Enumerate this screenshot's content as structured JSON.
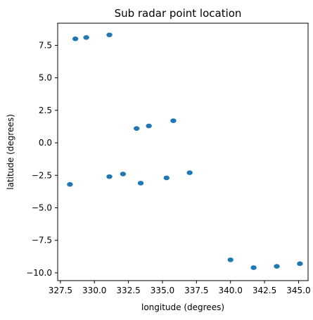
{
  "chart_data": {
    "type": "scatter",
    "title": "Sub radar point location",
    "xlabel": "longitude (degrees)",
    "ylabel": "latitude (degrees)",
    "xlim": [
      327.3,
      345.7
    ],
    "ylim": [
      -10.6,
      9.2
    ],
    "grid": false,
    "legend": "none",
    "marker_color": "#1f77b4",
    "xticks": [
      {
        "value": 327.5,
        "label": "327.5"
      },
      {
        "value": 330.0,
        "label": "330.0"
      },
      {
        "value": 332.5,
        "label": "332.5"
      },
      {
        "value": 335.0,
        "label": "335.0"
      },
      {
        "value": 337.5,
        "label": "337.5"
      },
      {
        "value": 340.0,
        "label": "340.0"
      },
      {
        "value": 342.5,
        "label": "342.5"
      },
      {
        "value": 345.0,
        "label": "345.0"
      }
    ],
    "yticks": [
      {
        "value": 7.5,
        "label": "7.5"
      },
      {
        "value": 5.0,
        "label": "5.0"
      },
      {
        "value": 2.5,
        "label": "2.5"
      },
      {
        "value": 0.0,
        "label": "0.0"
      },
      {
        "value": -2.5,
        "label": "−2.5"
      },
      {
        "value": -5.0,
        "label": "−5.0"
      },
      {
        "value": -7.5,
        "label": "−7.5"
      },
      {
        "value": -10.0,
        "label": "−10.0"
      }
    ],
    "series": [
      {
        "points": [
          {
            "x": 328.6,
            "y": 8.0
          },
          {
            "x": 329.4,
            "y": 8.1
          },
          {
            "x": 331.1,
            "y": 8.3
          },
          {
            "x": 333.1,
            "y": 1.1
          },
          {
            "x": 334.0,
            "y": 1.3
          },
          {
            "x": 335.8,
            "y": 1.7
          },
          {
            "x": 328.2,
            "y": -3.2
          },
          {
            "x": 331.1,
            "y": -2.6
          },
          {
            "x": 332.1,
            "y": -2.4
          },
          {
            "x": 333.4,
            "y": -3.1
          },
          {
            "x": 335.3,
            "y": -2.7
          },
          {
            "x": 337.0,
            "y": -2.3
          },
          {
            "x": 340.0,
            "y": -9.0
          },
          {
            "x": 341.7,
            "y": -9.6
          },
          {
            "x": 343.4,
            "y": -9.5
          },
          {
            "x": 345.1,
            "y": -9.3
          }
        ]
      }
    ]
  }
}
